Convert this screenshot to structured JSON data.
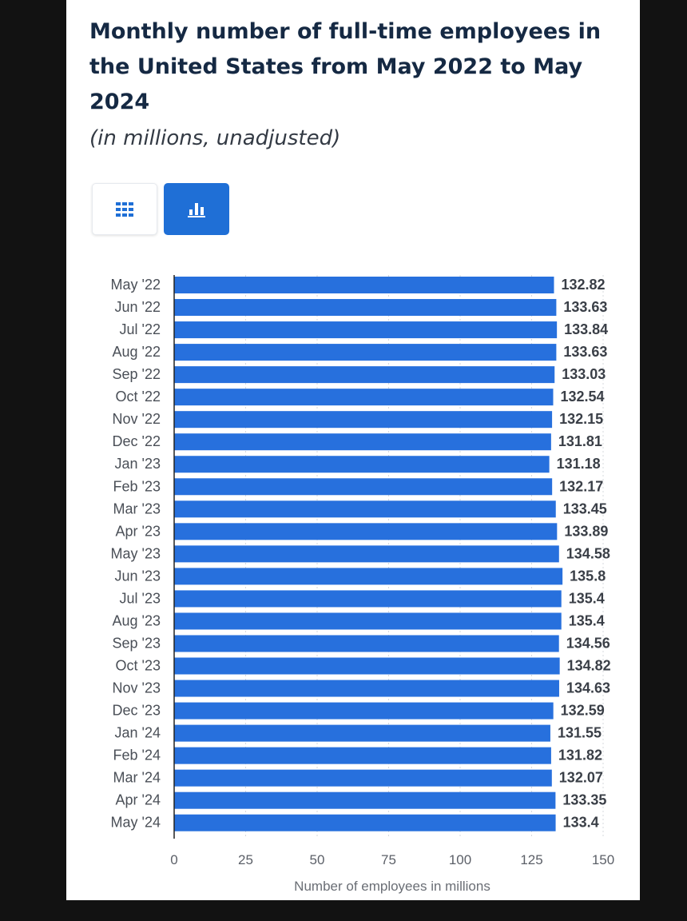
{
  "page": {
    "title": "Monthly number of full-time employees in the United States from May 2022 to May 2024",
    "subtitle": "(in millions, unadjusted)"
  },
  "toggles": [
    {
      "name": "table-view-toggle",
      "icon": "grid-icon",
      "active": false
    },
    {
      "name": "chart-view-toggle",
      "icon": "bar-chart-icon",
      "active": true
    }
  ],
  "colors": {
    "bar": "#2770dd",
    "toggle_active": "#1f6fd6",
    "title": "#152943"
  },
  "chart_data": {
    "type": "bar",
    "orientation": "horizontal",
    "categories": [
      "May '22",
      "Jun '22",
      "Jul '22",
      "Aug '22",
      "Sep '22",
      "Oct '22",
      "Nov '22",
      "Dec '22",
      "Jan '23",
      "Feb '23",
      "Mar '23",
      "Apr '23",
      "May '23",
      "Jun '23",
      "Jul '23",
      "Aug '23",
      "Sep '23",
      "Oct '23",
      "Nov '23",
      "Dec '23",
      "Jan '24",
      "Feb '24",
      "Mar '24",
      "Apr '24",
      "May '24"
    ],
    "values": [
      132.82,
      133.63,
      133.84,
      133.63,
      133.03,
      132.54,
      132.15,
      131.81,
      131.18,
      132.17,
      133.45,
      133.89,
      134.58,
      135.8,
      135.4,
      135.4,
      134.56,
      134.82,
      134.63,
      132.59,
      131.55,
      131.82,
      132.07,
      133.35,
      133.4
    ],
    "value_labels": [
      "132.82",
      "133.63",
      "133.84",
      "133.63",
      "133.03",
      "132.54",
      "132.15",
      "131.81",
      "131.18",
      "132.17",
      "133.45",
      "133.89",
      "134.58",
      "135.8",
      "135.4",
      "135.4",
      "134.56",
      "134.82",
      "134.63",
      "132.59",
      "131.55",
      "131.82",
      "132.07",
      "133.35",
      "133.4"
    ],
    "xlabel": "Number of employees in millions",
    "xlim": [
      0,
      150
    ],
    "xticks": [
      "0",
      "25",
      "50",
      "75",
      "100",
      "125",
      "150"
    ],
    "grid": true,
    "legend": "none"
  }
}
